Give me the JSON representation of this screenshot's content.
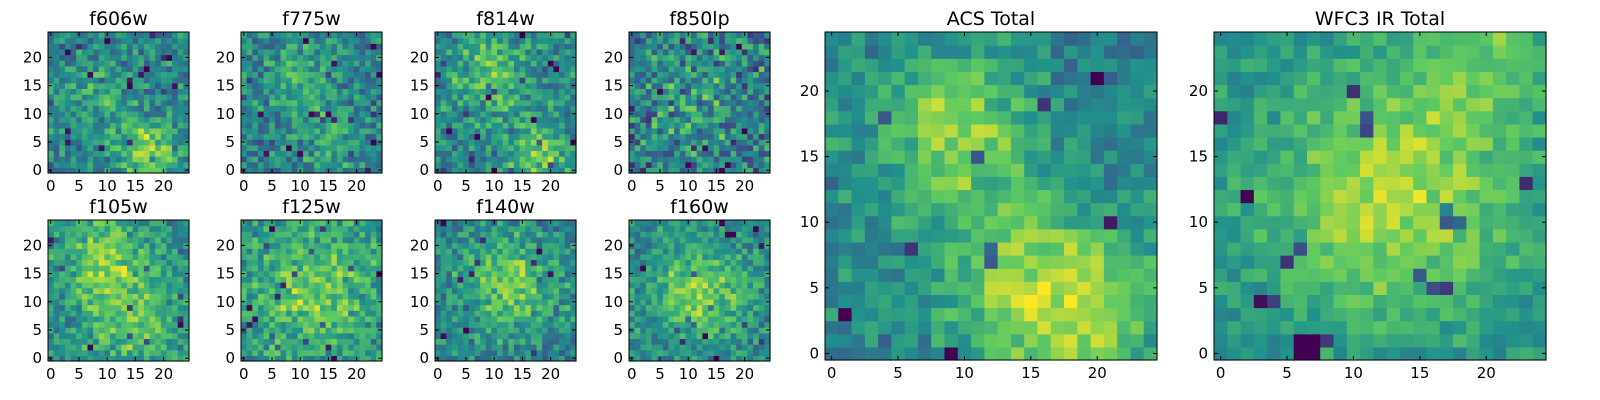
{
  "chart_data": {
    "type": "heatmap",
    "grid_size": 25,
    "colormap": "viridis",
    "colormap_stops": [
      "#440154",
      "#3b528b",
      "#21918c",
      "#5ec962",
      "#fde725"
    ],
    "panels": [
      {
        "title": "f606w",
        "xticks": [
          0,
          5,
          10,
          15,
          20
        ],
        "yticks": [
          0,
          5,
          10,
          15,
          20
        ],
        "xlim": [
          -0.5,
          24.5
        ],
        "ylim": [
          -0.5,
          24.5
        ],
        "seed": 11,
        "bias": 0.02,
        "noise": 0.34,
        "blobs": [
          [
            17,
            3,
            4,
            0.4
          ],
          [
            8,
            14,
            4,
            0.18
          ]
        ]
      },
      {
        "title": "f775w",
        "xticks": [
          0,
          5,
          10,
          15,
          20
        ],
        "yticks": [
          0,
          5,
          10,
          15,
          20
        ],
        "xlim": [
          -0.5,
          24.5
        ],
        "ylim": [
          -0.5,
          24.5
        ],
        "seed": 23,
        "bias": 0.0,
        "noise": 0.34,
        "blobs": [
          [
            10,
            17,
            5,
            0.22
          ],
          [
            16,
            5,
            4,
            0.2
          ]
        ]
      },
      {
        "title": "f814w",
        "xticks": [
          0,
          5,
          10,
          15,
          20
        ],
        "yticks": [
          0,
          5,
          10,
          15,
          20
        ],
        "xlim": [
          -0.5,
          24.5
        ],
        "ylim": [
          -0.5,
          24.5
        ],
        "seed": 37,
        "bias": 0.02,
        "noise": 0.36,
        "blobs": [
          [
            9,
            17,
            5,
            0.28
          ],
          [
            18,
            3,
            4,
            0.3
          ]
        ]
      },
      {
        "title": "f850lp",
        "xticks": [
          0,
          5,
          10,
          15,
          20
        ],
        "yticks": [
          0,
          5,
          10,
          15,
          20
        ],
        "xlim": [
          -0.5,
          24.5
        ],
        "ylim": [
          -0.5,
          24.5
        ],
        "seed": 41,
        "bias": 0.0,
        "noise": 0.46,
        "blobs": [
          [
            12,
            12,
            6,
            0.12
          ]
        ]
      },
      {
        "title": "f105w",
        "xticks": [
          0,
          5,
          10,
          15,
          20
        ],
        "yticks": [
          0,
          5,
          10,
          15,
          20
        ],
        "xlim": [
          -0.5,
          24.5
        ],
        "ylim": [
          -0.5,
          24.5
        ],
        "seed": 53,
        "bias": 0.06,
        "noise": 0.32,
        "blobs": [
          [
            9,
            18,
            5,
            0.3
          ],
          [
            14,
            7,
            6,
            0.26
          ]
        ]
      },
      {
        "title": "f125w",
        "xticks": [
          0,
          5,
          10,
          15,
          20
        ],
        "yticks": [
          0,
          5,
          10,
          15,
          20
        ],
        "xlim": [
          -0.5,
          24.5
        ],
        "ylim": [
          -0.5,
          24.5
        ],
        "seed": 67,
        "bias": 0.1,
        "noise": 0.32,
        "blobs": [
          [
            12,
            12,
            7,
            0.26
          ]
        ]
      },
      {
        "title": "f140w",
        "xticks": [
          0,
          5,
          10,
          15,
          20
        ],
        "yticks": [
          0,
          5,
          10,
          15,
          20
        ],
        "xlim": [
          -0.5,
          24.5
        ],
        "ylim": [
          -0.5,
          24.5
        ],
        "seed": 79,
        "bias": 0.02,
        "noise": 0.32,
        "blobs": [
          [
            13,
            13,
            6,
            0.32
          ]
        ]
      },
      {
        "title": "f160w",
        "xticks": [
          0,
          5,
          10,
          15,
          20
        ],
        "yticks": [
          0,
          5,
          10,
          15,
          20
        ],
        "xlim": [
          -0.5,
          24.5
        ],
        "ylim": [
          -0.5,
          24.5
        ],
        "seed": 83,
        "bias": 0.04,
        "noise": 0.3,
        "blobs": [
          [
            12,
            12,
            6,
            0.34
          ]
        ]
      },
      {
        "title": "ACS Total",
        "xticks": [
          0,
          5,
          10,
          15,
          20
        ],
        "yticks": [
          0,
          5,
          10,
          15,
          20
        ],
        "xlim": [
          -0.5,
          24.5
        ],
        "ylim": [
          -0.5,
          24.5
        ],
        "seed": 97,
        "bias": 0.04,
        "noise": 0.24,
        "blobs": [
          [
            9,
            17,
            4,
            0.36
          ],
          [
            18,
            3,
            5,
            0.36
          ],
          [
            14,
            7,
            4,
            0.18
          ]
        ]
      },
      {
        "title": "WFC3 IR Total",
        "xticks": [
          0,
          5,
          10,
          15,
          20
        ],
        "yticks": [
          0,
          5,
          10,
          15,
          20
        ],
        "xlim": [
          -0.5,
          24.5
        ],
        "ylim": [
          -0.5,
          24.5
        ],
        "seed": 101,
        "bias": 0.06,
        "noise": 0.2,
        "blobs": [
          [
            13,
            12,
            7,
            0.4
          ],
          [
            20,
            23,
            4,
            0.22
          ]
        ],
        "dark": [
          [
            6,
            0
          ],
          [
            7,
            0
          ],
          [
            6,
            1
          ],
          [
            7,
            1
          ],
          [
            2,
            12
          ]
        ]
      }
    ]
  }
}
